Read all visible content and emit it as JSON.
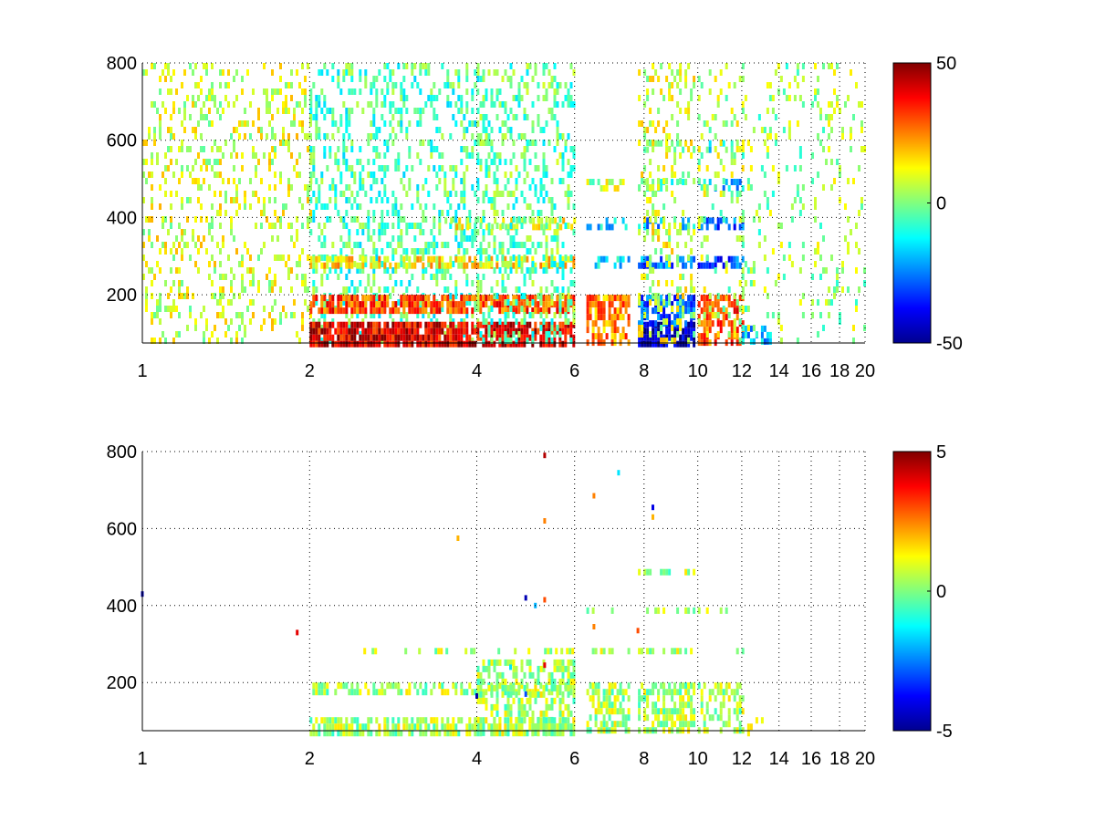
{
  "chart_data": [
    {
      "type": "heatmap",
      "title": "",
      "xlabel": "",
      "ylabel": "",
      "xlim": [
        1,
        20
      ],
      "ylim": [
        75,
        800
      ],
      "xscale": "log",
      "x_ticks": [
        1,
        2,
        4,
        6,
        8,
        10,
        12,
        14,
        16,
        18,
        20
      ],
      "y_ticks": [
        200,
        400,
        600,
        800
      ],
      "grid": "dotted",
      "colormap": "jet",
      "clim": [
        -50,
        50
      ],
      "colorbar_ticks": [
        -50,
        0,
        50
      ],
      "blank_value_color": "#ffffff",
      "regions": [
        {
          "x": [
            1.0,
            2.0
          ],
          "y": [
            75,
            800
          ],
          "value": 8,
          "density": 0.22
        },
        {
          "x": [
            2.0,
            4.0
          ],
          "y": [
            75,
            800
          ],
          "value": -5,
          "density": 0.3
        },
        {
          "x": [
            2.0,
            6.0
          ],
          "y": [
            75,
            130
          ],
          "value": 40,
          "density": 0.85
        },
        {
          "x": [
            2.0,
            6.0
          ],
          "y": [
            160,
            200
          ],
          "value": 30,
          "density": 0.75
        },
        {
          "x": [
            2.0,
            6.0
          ],
          "y": [
            270,
            300
          ],
          "value": 15,
          "density": 0.6
        },
        {
          "x": [
            3.5,
            6.0
          ],
          "y": [
            370,
            400
          ],
          "value": 10,
          "density": 0.5
        },
        {
          "x": [
            4.0,
            6.0
          ],
          "y": [
            75,
            800
          ],
          "value": -3,
          "density": 0.3
        },
        {
          "x": [
            6.3,
            7.5
          ],
          "y": [
            75,
            200
          ],
          "value": 25,
          "density": 0.7
        },
        {
          "x": [
            6.3,
            7.5
          ],
          "y": [
            270,
            300
          ],
          "value": -15,
          "density": 0.5
        },
        {
          "x": [
            6.3,
            7.5
          ],
          "y": [
            370,
            400
          ],
          "value": -15,
          "density": 0.4
        },
        {
          "x": [
            6.3,
            7.5
          ],
          "y": [
            470,
            500
          ],
          "value": 5,
          "density": 0.35
        },
        {
          "x": [
            7.8,
            9.8
          ],
          "y": [
            75,
            130
          ],
          "value": -45,
          "density": 0.85
        },
        {
          "x": [
            7.8,
            9.8
          ],
          "y": [
            130,
            200
          ],
          "value": -30,
          "density": 0.7
        },
        {
          "x": [
            7.8,
            9.8
          ],
          "y": [
            270,
            300
          ],
          "value": -25,
          "density": 0.6
        },
        {
          "x": [
            7.8,
            9.8
          ],
          "y": [
            370,
            400
          ],
          "value": -20,
          "density": 0.55
        },
        {
          "x": [
            7.8,
            9.8
          ],
          "y": [
            470,
            500
          ],
          "value": -5,
          "density": 0.4
        },
        {
          "x": [
            7.8,
            9.8
          ],
          "y": [
            580,
            600
          ],
          "value": 5,
          "density": 0.35
        },
        {
          "x": [
            7.8,
            9.8
          ],
          "y": [
            75,
            800
          ],
          "value": 8,
          "density": 0.22
        },
        {
          "x": [
            10.0,
            12.0
          ],
          "y": [
            75,
            200
          ],
          "value": 30,
          "density": 0.65
        },
        {
          "x": [
            10.0,
            12.0
          ],
          "y": [
            270,
            300
          ],
          "value": -30,
          "density": 0.55
        },
        {
          "x": [
            10.0,
            12.0
          ],
          "y": [
            370,
            400
          ],
          "value": -30,
          "density": 0.55
        },
        {
          "x": [
            10.0,
            12.0
          ],
          "y": [
            470,
            500
          ],
          "value": -20,
          "density": 0.4
        },
        {
          "x": [
            10.0,
            12.0
          ],
          "y": [
            580,
            600
          ],
          "value": -10,
          "density": 0.3
        },
        {
          "x": [
            10.0,
            12.0
          ],
          "y": [
            75,
            800
          ],
          "value": 5,
          "density": 0.15
        },
        {
          "x": [
            12.0,
            13.5
          ],
          "y": [
            75,
            120
          ],
          "value": -20,
          "density": 0.5
        },
        {
          "x": [
            12.0,
            15.5
          ],
          "y": [
            75,
            800
          ],
          "value": 2,
          "density": 0.12
        },
        {
          "x": [
            16.0,
            20.0
          ],
          "y": [
            75,
            800
          ],
          "value": 3,
          "density": 0.15
        }
      ]
    },
    {
      "type": "heatmap",
      "title": "",
      "xlabel": "",
      "ylabel": "",
      "xlim": [
        1,
        20
      ],
      "ylim": [
        75,
        800
      ],
      "xscale": "log",
      "x_ticks": [
        1,
        2,
        4,
        6,
        8,
        10,
        12,
        14,
        16,
        18,
        20
      ],
      "y_ticks": [
        200,
        400,
        600,
        800
      ],
      "grid": "dotted",
      "colormap": "jet",
      "clim": [
        -5,
        5
      ],
      "colorbar_ticks": [
        -5,
        0,
        5
      ],
      "blank_value_color": "#ffffff",
      "regions": [
        {
          "x": [
            2.0,
            6.0
          ],
          "y": [
            75,
            110
          ],
          "value": 0.4,
          "density": 0.75
        },
        {
          "x": [
            2.0,
            6.0
          ],
          "y": [
            170,
            200
          ],
          "value": 0.4,
          "density": 0.45
        },
        {
          "x": [
            2.5,
            6.0
          ],
          "y": [
            275,
            290
          ],
          "value": 0.4,
          "density": 0.35
        },
        {
          "x": [
            4.0,
            6.0
          ],
          "y": [
            75,
            260
          ],
          "value": 0.4,
          "density": 0.5
        },
        {
          "x": [
            6.3,
            7.5
          ],
          "y": [
            75,
            200
          ],
          "value": 0.4,
          "density": 0.6
        },
        {
          "x": [
            6.3,
            7.5
          ],
          "y": [
            275,
            290
          ],
          "value": 0.4,
          "density": 0.3
        },
        {
          "x": [
            6.3,
            7.5
          ],
          "y": [
            380,
            395
          ],
          "value": 0.4,
          "density": 0.25
        },
        {
          "x": [
            7.8,
            9.8
          ],
          "y": [
            75,
            200
          ],
          "value": 0.4,
          "density": 0.65
        },
        {
          "x": [
            7.8,
            9.8
          ],
          "y": [
            275,
            290
          ],
          "value": 0.4,
          "density": 0.45
        },
        {
          "x": [
            7.8,
            9.8
          ],
          "y": [
            380,
            395
          ],
          "value": 0.4,
          "density": 0.4
        },
        {
          "x": [
            7.8,
            9.8
          ],
          "y": [
            480,
            495
          ],
          "value": 0.4,
          "density": 0.3
        },
        {
          "x": [
            10.0,
            12.0
          ],
          "y": [
            75,
            200
          ],
          "value": 0.4,
          "density": 0.5
        },
        {
          "x": [
            10.0,
            12.0
          ],
          "y": [
            280,
            290
          ],
          "value": 0.4,
          "density": 0.35
        },
        {
          "x": [
            10.0,
            12.0
          ],
          "y": [
            380,
            395
          ],
          "value": 0.4,
          "density": 0.35
        },
        {
          "x": [
            10.0,
            11.0
          ],
          "y": [
            480,
            495
          ],
          "value": 0.4,
          "density": 0.3
        },
        {
          "x": [
            12.0,
            13.0
          ],
          "y": [
            75,
            110
          ],
          "value": 0.4,
          "density": 0.4
        }
      ],
      "points": [
        {
          "x": 5.3,
          "y": 790,
          "value": 4.5
        },
        {
          "x": 7.2,
          "y": 745,
          "value": -1.5
        },
        {
          "x": 6.5,
          "y": 685,
          "value": 2.5
        },
        {
          "x": 8.3,
          "y": 655,
          "value": -4
        },
        {
          "x": 8.3,
          "y": 630,
          "value": 2
        },
        {
          "x": 5.3,
          "y": 620,
          "value": 2.5
        },
        {
          "x": 4.9,
          "y": 420,
          "value": -4.5
        },
        {
          "x": 5.3,
          "y": 415,
          "value": 3
        },
        {
          "x": 5.1,
          "y": 400,
          "value": -2
        },
        {
          "x": 6.5,
          "y": 345,
          "value": 2.5
        },
        {
          "x": 7.8,
          "y": 335,
          "value": 3
        },
        {
          "x": 5.3,
          "y": 245,
          "value": 4
        },
        {
          "x": 4.6,
          "y": 240,
          "value": -1.5
        },
        {
          "x": 4.0,
          "y": 165,
          "value": -4.5
        },
        {
          "x": 4.9,
          "y": 170,
          "value": -3
        },
        {
          "x": 3.7,
          "y": 575,
          "value": 2
        },
        {
          "x": 1.9,
          "y": 330,
          "value": 4
        },
        {
          "x": 1.0,
          "y": 430,
          "value": -4.5
        }
      ]
    }
  ]
}
